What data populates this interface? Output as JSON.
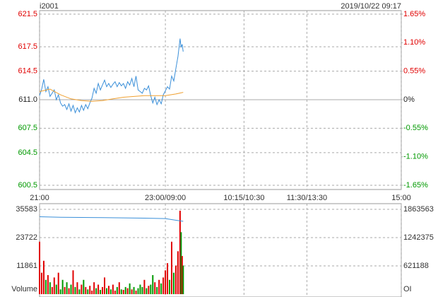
{
  "title": "i2001",
  "timestamp": "2019/10/22 09:17",
  "chart_data": [
    {
      "type": "line",
      "up_color": "#e00000",
      "down_color": "#009900",
      "xlim": [
        0,
        345
      ],
      "xticks": [
        {
          "value": 0,
          "label": "21:00"
        },
        {
          "value": 120,
          "label": "23:00/09:00"
        },
        {
          "value": 195,
          "label": "10:15/10:30"
        },
        {
          "value": 255,
          "label": "11:30/13:30"
        },
        {
          "value": 345,
          "label": "15:00"
        }
      ],
      "ylim": [
        600.5,
        621.5
      ],
      "yticks": [
        600.5,
        604.5,
        607.5,
        {
          "value": 611,
          "label": "611.0"
        },
        614.5,
        617.5,
        621.5
      ],
      "y2lim": [
        -1.65,
        1.65
      ],
      "y2ticks": [
        {
          "value": -1.65,
          "label": "-1.65%"
        },
        {
          "value": -1.1,
          "label": "-1.10%"
        },
        {
          "value": -0.55,
          "label": "-0.55%"
        },
        {
          "value": 0,
          "label": "0%"
        },
        {
          "value": 0.55,
          "label": "0.55%"
        },
        {
          "value": 1.1,
          "label": "1.10%"
        },
        {
          "value": 1.65,
          "label": "1.65%"
        }
      ],
      "grid": true,
      "series": [
        {
          "color": "#3a8fd9",
          "x": [
            0,
            2,
            4,
            6,
            8,
            10,
            12,
            14,
            16,
            18,
            20,
            22,
            24,
            26,
            28,
            30,
            32,
            34,
            36,
            38,
            40,
            42,
            44,
            46,
            48,
            50,
            52,
            54,
            56,
            58,
            60,
            62,
            64,
            66,
            68,
            70,
            72,
            74,
            76,
            78,
            80,
            82,
            84,
            86,
            88,
            90,
            92,
            94,
            96,
            98,
            100,
            102,
            104,
            106,
            108,
            110,
            112,
            114,
            116,
            118,
            120,
            122,
            124,
            126,
            128,
            130,
            132,
            134,
            135,
            136,
            137
          ],
          "values": [
            611.5,
            612.3,
            613.5,
            612.0,
            612.6,
            611.4,
            611.8,
            612.2,
            611.0,
            611.6,
            610.6,
            610.2,
            610.4,
            609.8,
            610.5,
            609.6,
            610.3,
            609.4,
            610.0,
            609.5,
            610.3,
            609.7,
            610.4,
            609.9,
            610.6,
            611.2,
            612.4,
            611.8,
            613.0,
            612.2,
            612.8,
            613.4,
            612.6,
            613.0,
            612.5,
            612.9,
            613.2,
            612.6,
            613.1,
            612.7,
            613.0,
            612.4,
            613.2,
            612.8,
            613.6,
            612.6,
            613.9,
            612.2,
            612.0,
            611.8,
            612.4,
            612.2,
            612.7,
            611.5,
            610.6,
            611.3,
            610.4,
            611.0,
            610.5,
            611.6,
            612.1,
            612.6,
            612.3,
            613.9,
            613.3,
            614.8,
            616.3,
            618.5,
            617.4,
            617.8,
            616.9
          ]
        },
        {
          "color": "#f0a030",
          "x": [
            0,
            10,
            20,
            30,
            40,
            50,
            60,
            70,
            80,
            90,
            100,
            110,
            120,
            130,
            137
          ],
          "values": [
            612.0,
            612.3,
            611.6,
            611.1,
            610.9,
            610.8,
            610.9,
            611.1,
            611.3,
            611.4,
            611.5,
            611.5,
            611.5,
            611.7,
            611.9
          ]
        }
      ]
    },
    {
      "type": "bar",
      "ylabel": "Volume",
      "y2label": "OI",
      "xlim": [
        0,
        345
      ],
      "ylim": [
        0,
        35583
      ],
      "yticks": [
        11861,
        23722,
        35583
      ],
      "y2lim": [
        0,
        1863563
      ],
      "y2ticks": [
        621188,
        1242375,
        1863563
      ],
      "series": [
        {
          "x": [
            0,
            2,
            4,
            6,
            8,
            10,
            12,
            14,
            16,
            18,
            20,
            22,
            24,
            26,
            28,
            30,
            32,
            34,
            36,
            38,
            40,
            42,
            44,
            46,
            48,
            50,
            52,
            54,
            56,
            58,
            60,
            62,
            64,
            66,
            68,
            70,
            72,
            74,
            76,
            78,
            80,
            82,
            84,
            86,
            88,
            90,
            92,
            94,
            96,
            98,
            100,
            102,
            104,
            106,
            108,
            110,
            112,
            114,
            116,
            118,
            120,
            122,
            124,
            126,
            128,
            130,
            132,
            134,
            135,
            136,
            137
          ],
          "values": [
            22000,
            9000,
            14000,
            6000,
            8000,
            5000,
            3000,
            7000,
            4000,
            9000,
            2000,
            6000,
            3000,
            5000,
            2500,
            4000,
            10000,
            3000,
            5000,
            2000,
            4000,
            6000,
            3000,
            2000,
            3500,
            1500,
            5000,
            2500,
            4000,
            1800,
            3000,
            7000,
            2500,
            3500,
            2000,
            4000,
            1500,
            3000,
            5000,
            2000,
            1800,
            3000,
            2500,
            4500,
            2000,
            3000,
            1500,
            2500,
            4000,
            3000,
            6000,
            2500,
            3500,
            4000,
            8000,
            5000,
            3000,
            6000,
            4500,
            7000,
            10000,
            13000,
            6000,
            22000,
            9000,
            12000,
            18000,
            35000,
            26000,
            16000,
            12000
          ],
          "colors": [
            "#e00000",
            "#e00000",
            "#e00000",
            "#009900",
            "#e00000",
            "#009900",
            "#e00000",
            "#e00000",
            "#009900",
            "#e00000",
            "#009900",
            "#009900",
            "#e00000",
            "#009900",
            "#e00000",
            "#009900",
            "#e00000",
            "#009900",
            "#e00000",
            "#009900",
            "#e00000",
            "#009900",
            "#e00000",
            "#009900",
            "#e00000",
            "#e00000",
            "#e00000",
            "#009900",
            "#e00000",
            "#009900",
            "#e00000",
            "#e00000",
            "#009900",
            "#e00000",
            "#009900",
            "#e00000",
            "#e00000",
            "#009900",
            "#e00000",
            "#009900",
            "#e00000",
            "#009900",
            "#e00000",
            "#009900",
            "#e00000",
            "#009900",
            "#e00000",
            "#009900",
            "#009900",
            "#009900",
            "#e00000",
            "#009900",
            "#e00000",
            "#009900",
            "#009900",
            "#e00000",
            "#009900",
            "#e00000",
            "#009900",
            "#e00000",
            "#e00000",
            "#e00000",
            "#009900",
            "#e00000",
            "#009900",
            "#e00000",
            "#e00000",
            "#e00000",
            "#009900",
            "#e00000",
            "#009900"
          ]
        },
        {
          "type": "line",
          "axis": "y2",
          "color": "#3a8fd9",
          "x": [
            0,
            20,
            40,
            60,
            80,
            100,
            120,
            137
          ],
          "values": [
            1700000,
            1690000,
            1685000,
            1680000,
            1675000,
            1670000,
            1660000,
            1600000
          ]
        }
      ]
    }
  ]
}
